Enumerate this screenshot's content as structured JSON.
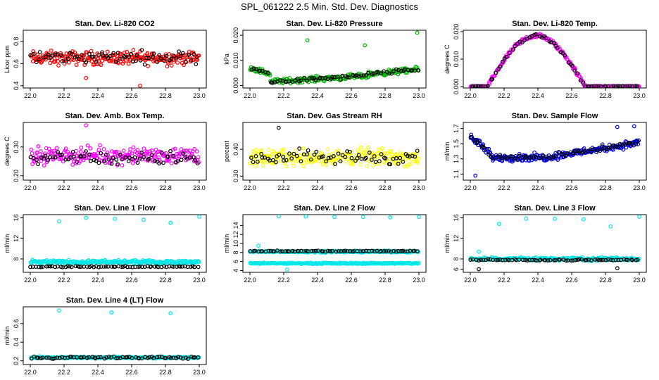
{
  "figure": {
    "title": "SPL_061222  2.5 Min. Std. Dev. Diagnostics"
  },
  "chart_data": [
    {
      "id": "co2",
      "type": "scatter",
      "title": "Stan. Dev. Li-820 CO2",
      "ylabel": "Licor ppm",
      "xlim": [
        22.0,
        23.0
      ],
      "ylim": [
        0.38,
        0.9
      ],
      "xticks": [
        "22.0",
        "22.2",
        "22.4",
        "22.6",
        "22.8",
        "23.0"
      ],
      "yticks": [
        "0.4",
        "0.6",
        "0.8"
      ],
      "ytick_values": [
        0.4,
        0.6,
        0.8
      ],
      "series": [
        {
          "name": "red",
          "color": "#ff0000",
          "base": 0.65,
          "spread": 0.09,
          "shape": "flat"
        },
        {
          "name": "black",
          "color": "#000000",
          "base": 0.66,
          "spread": 0.08,
          "shape": "flat"
        }
      ],
      "outliers": [
        {
          "x": 22.33,
          "y": 0.47,
          "color": "#ff0000"
        },
        {
          "x": 22.65,
          "y": 0.4,
          "color": "#ff0000"
        }
      ]
    },
    {
      "id": "pressure",
      "type": "scatter",
      "title": "Stan. Dev. Li-820 Pressure",
      "ylabel": "kPa",
      "xlim": [
        22.0,
        23.0
      ],
      "ylim": [
        -0.001,
        0.022
      ],
      "xticks": [
        "22.0",
        "22.2",
        "22.4",
        "22.6",
        "22.8",
        "23.0"
      ],
      "yticks": [
        "0.000",
        "0.010",
        "0.020"
      ],
      "ytick_values": [
        0.0,
        0.01,
        0.02
      ],
      "series": [
        {
          "name": "green",
          "color": "#00b000",
          "base": 0.004,
          "spread": 0.0015,
          "shape": "pressure"
        },
        {
          "name": "black",
          "color": "#000000",
          "base": 0.004,
          "spread": 0.0012,
          "shape": "pressure"
        }
      ],
      "outliers": [
        {
          "x": 22.34,
          "y": 0.018,
          "color": "#00b000"
        },
        {
          "x": 22.68,
          "y": 0.016,
          "color": "#00b000"
        },
        {
          "x": 22.99,
          "y": 0.021,
          "color": "#00b000"
        }
      ]
    },
    {
      "id": "temp",
      "type": "scatter",
      "title": "Stan. Dev. Li-820 Temp.",
      "ylabel": "degrees C",
      "xlim": [
        22.0,
        23.0
      ],
      "ylim": [
        -0.0005,
        0.0205
      ],
      "xticks": [
        "22.0",
        "22.2",
        "22.4",
        "22.6",
        "22.8",
        "23.0"
      ],
      "yticks": [
        "0.000",
        "0.010",
        "0.020"
      ],
      "ytick_values": [
        0.0,
        0.01,
        0.02
      ],
      "series": [
        {
          "name": "magenta",
          "color": "#ff00ff",
          "base": 0.0,
          "spread": 0.0012,
          "shape": "arc"
        },
        {
          "name": "black",
          "color": "#000000",
          "base": 0.0,
          "spread": 0.001,
          "shape": "arc"
        }
      ],
      "outliers": []
    },
    {
      "id": "ambbox",
      "type": "scatter",
      "title": "Stan. Dev. Amb. Box Temp.",
      "ylabel": "degrees C",
      "xlim": [
        22.0,
        23.0
      ],
      "ylim": [
        0.185,
        0.385
      ],
      "xticks": [
        "22.0",
        "22.2",
        "22.4",
        "22.6",
        "22.8",
        "23.0"
      ],
      "yticks": [
        "0.20",
        "0.30"
      ],
      "ytick_values": [
        0.2,
        0.3
      ],
      "series": [
        {
          "name": "magenta",
          "color": "#ff00ff",
          "base": 0.27,
          "spread": 0.04,
          "shape": "flat"
        },
        {
          "name": "black",
          "color": "#000000",
          "base": 0.26,
          "spread": 0.035,
          "shape": "flat"
        }
      ],
      "outliers": [
        {
          "x": 22.33,
          "y": 0.375,
          "color": "#ff00ff"
        }
      ]
    },
    {
      "id": "rh",
      "type": "scatter",
      "title": "Stan. Dev. Gas Stream RH",
      "ylabel": "percent",
      "xlim": [
        22.0,
        23.0
      ],
      "ylim": [
        0.285,
        0.5
      ],
      "xticks": [
        "22.0",
        "22.2",
        "22.4",
        "22.6",
        "22.8",
        "23.0"
      ],
      "yticks": [
        "0.30",
        "0.40"
      ],
      "ytick_values": [
        0.3,
        0.4
      ],
      "series": [
        {
          "name": "yellow",
          "color": "#ffff00",
          "base": 0.37,
          "spread": 0.045,
          "shape": "flat"
        },
        {
          "name": "black",
          "color": "#000000",
          "base": 0.37,
          "spread": 0.04,
          "shape": "flat"
        }
      ],
      "outliers": [
        {
          "x": 22.17,
          "y": 0.48,
          "color": "#000000"
        }
      ]
    },
    {
      "id": "sampleflow",
      "type": "scatter",
      "title": "Stan. Dev. Sample Flow",
      "ylabel": "ml/min",
      "xlim": [
        22.0,
        23.0
      ],
      "ylim": [
        1.02,
        1.78
      ],
      "xticks": [
        "22.0",
        "22.2",
        "22.4",
        "22.6",
        "22.8",
        "23.0"
      ],
      "yticks": [
        "1.1",
        "1.3",
        "1.5",
        "1.7"
      ],
      "ytick_values": [
        1.1,
        1.3,
        1.5,
        1.7
      ],
      "series": [
        {
          "name": "blue",
          "color": "#0000dd",
          "base": 1.4,
          "spread": 0.07,
          "shape": "sample"
        },
        {
          "name": "black",
          "color": "#000000",
          "base": 1.4,
          "spread": 0.05,
          "shape": "sample"
        }
      ],
      "outliers": [
        {
          "x": 22.03,
          "y": 1.08,
          "color": "#0000dd"
        },
        {
          "x": 22.87,
          "y": 1.72,
          "color": "#0000dd"
        },
        {
          "x": 22.97,
          "y": 1.73,
          "color": "#0000dd"
        }
      ]
    },
    {
      "id": "line1",
      "type": "scatter",
      "title": "Stan. Dev. Line 1 Flow",
      "ylabel": "ml/min",
      "xlim": [
        22.0,
        23.0
      ],
      "ylim": [
        5.4,
        16.6
      ],
      "xticks": [
        "22.0",
        "22.2",
        "22.4",
        "22.6",
        "22.8",
        "23.0"
      ],
      "yticks": [
        "8",
        "12",
        "16"
      ],
      "ytick_values": [
        8,
        12,
        16
      ],
      "series": [
        {
          "name": "cyan",
          "color": "#00e8e8",
          "base": 7.4,
          "spread": 0.5,
          "shape": "flat"
        },
        {
          "name": "black",
          "color": "#000000",
          "base": 6.5,
          "spread": 0.15,
          "shape": "flat"
        }
      ],
      "outliers": [
        {
          "x": 22.17,
          "y": 15.3,
          "color": "#00e8e8"
        },
        {
          "x": 22.33,
          "y": 16.0,
          "color": "#00e8e8"
        },
        {
          "x": 22.5,
          "y": 15.8,
          "color": "#00e8e8"
        },
        {
          "x": 22.67,
          "y": 15.6,
          "color": "#00e8e8"
        },
        {
          "x": 22.83,
          "y": 15.0,
          "color": "#00e8e8"
        },
        {
          "x": 23.0,
          "y": 16.2,
          "color": "#00e8e8"
        }
      ]
    },
    {
      "id": "line2",
      "type": "scatter",
      "title": "Stan. Dev. Line 2 Flow",
      "ylabel": "ml/min",
      "xlim": [
        22.0,
        23.0
      ],
      "ylim": [
        3.6,
        16.4
      ],
      "xticks": [
        "22.0",
        "22.2",
        "22.4",
        "22.6",
        "22.8",
        "23.0"
      ],
      "yticks": [
        "4",
        "6",
        "8",
        "10",
        "12",
        "14"
      ],
      "ytick_values": [
        4,
        6,
        8,
        10,
        12,
        14
      ],
      "series": [
        {
          "name": "cyan",
          "color": "#00e8e8",
          "base": 5.6,
          "spread": 0.2,
          "shape": "flat"
        },
        {
          "name": "cyan2",
          "color": "#00e8e8",
          "base": 8.2,
          "spread": 0.3,
          "shape": "flat"
        },
        {
          "name": "black",
          "color": "#000000",
          "base": 8.3,
          "spread": 0.15,
          "shape": "flat"
        }
      ],
      "outliers": [
        {
          "x": 22.17,
          "y": 16.0,
          "color": "#00e8e8"
        },
        {
          "x": 22.33,
          "y": 16.0,
          "color": "#00e8e8"
        },
        {
          "x": 22.5,
          "y": 15.9,
          "color": "#00e8e8"
        },
        {
          "x": 22.67,
          "y": 15.9,
          "color": "#00e8e8"
        },
        {
          "x": 22.83,
          "y": 15.8,
          "color": "#00e8e8"
        },
        {
          "x": 23.0,
          "y": 15.9,
          "color": "#00e8e8"
        },
        {
          "x": 22.05,
          "y": 9.5,
          "color": "#00e8e8"
        },
        {
          "x": 22.22,
          "y": 4.2,
          "color": "#00e8e8"
        }
      ]
    },
    {
      "id": "line3",
      "type": "scatter",
      "title": "Stan. Dev. Line 3 Flow",
      "ylabel": "ml/min",
      "xlim": [
        22.0,
        23.0
      ],
      "ylim": [
        5.4,
        16.6
      ],
      "xticks": [
        "22.0",
        "22.2",
        "22.4",
        "22.6",
        "22.8",
        "23.0"
      ],
      "yticks": [
        "6",
        "8",
        "12",
        "16"
      ],
      "ytick_values": [
        6,
        8,
        12,
        16
      ],
      "series": [
        {
          "name": "cyan",
          "color": "#00e8e8",
          "base": 8.0,
          "spread": 0.5,
          "shape": "flat"
        },
        {
          "name": "black",
          "color": "#000000",
          "base": 7.8,
          "spread": 0.2,
          "shape": "flat"
        }
      ],
      "outliers": [
        {
          "x": 22.17,
          "y": 14.8,
          "color": "#00e8e8"
        },
        {
          "x": 22.33,
          "y": 15.8,
          "color": "#00e8e8"
        },
        {
          "x": 22.5,
          "y": 15.8,
          "color": "#00e8e8"
        },
        {
          "x": 22.67,
          "y": 15.7,
          "color": "#00e8e8"
        },
        {
          "x": 22.83,
          "y": 14.3,
          "color": "#00e8e8"
        },
        {
          "x": 23.0,
          "y": 16.2,
          "color": "#00e8e8"
        },
        {
          "x": 22.05,
          "y": 9.4,
          "color": "#00e8e8"
        },
        {
          "x": 22.05,
          "y": 6.0,
          "color": "#000000"
        },
        {
          "x": 22.87,
          "y": 6.2,
          "color": "#000000"
        }
      ]
    },
    {
      "id": "line4",
      "type": "scatter",
      "title": "Stan. Dev. Line 4 (LT) Flow",
      "ylabel": "ml/min",
      "xlim": [
        22.0,
        23.0
      ],
      "ylim": [
        0.16,
        0.78
      ],
      "xticks": [
        "22.0",
        "22.2",
        "22.4",
        "22.6",
        "22.8",
        "23.0"
      ],
      "yticks": [
        "0.2",
        "0.4",
        "0.6"
      ],
      "ytick_values": [
        0.2,
        0.4,
        0.6
      ],
      "series": [
        {
          "name": "cyan",
          "color": "#00e8e8",
          "base": 0.235,
          "spread": 0.015,
          "shape": "flat"
        },
        {
          "name": "black",
          "color": "#000000",
          "base": 0.235,
          "spread": 0.018,
          "shape": "flat"
        }
      ],
      "outliers": [
        {
          "x": 22.17,
          "y": 0.74,
          "color": "#00e8e8"
        },
        {
          "x": 22.48,
          "y": 0.72,
          "color": "#00e8e8"
        },
        {
          "x": 22.83,
          "y": 0.71,
          "color": "#00e8e8"
        }
      ]
    }
  ]
}
